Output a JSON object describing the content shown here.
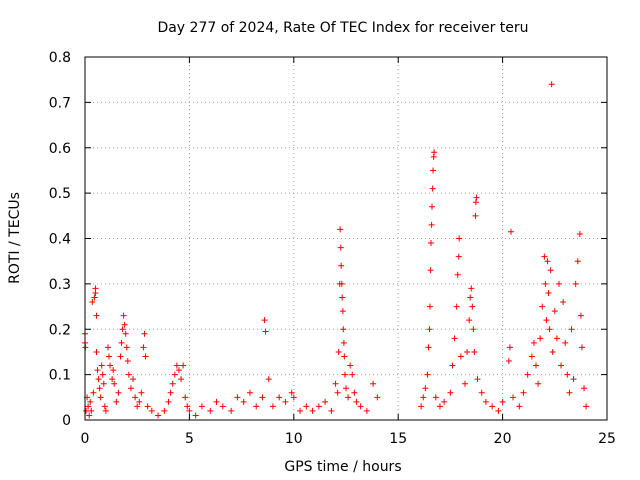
{
  "chart_data": {
    "type": "scatter",
    "title": "Day 277 of 2024, Rate Of TEC Index for receiver teru",
    "xlabel": "GPS time / hours",
    "ylabel": "ROTI / TECUs",
    "xlim": [
      0,
      25
    ],
    "ylim": [
      0,
      0.8
    ],
    "xticks": [
      0,
      5,
      10,
      15,
      20,
      25
    ],
    "yticks": [
      0,
      0.1,
      0.2,
      0.3,
      0.4,
      0.5,
      0.6,
      0.7,
      0.8
    ],
    "grid": true,
    "marker": "+",
    "color": "#ff0000",
    "series": [
      {
        "points": [
          [
            0.0,
            0.19
          ],
          [
            0.0,
            0.17
          ],
          [
            0.02,
            0.16
          ],
          [
            0.05,
            0.02
          ],
          [
            0.1,
            0.05
          ],
          [
            0.15,
            0.03
          ],
          [
            0.2,
            0.01
          ],
          [
            0.25,
            0.04
          ],
          [
            0.3,
            0.02
          ],
          [
            0.35,
            0.26
          ],
          [
            0.4,
            0.06
          ],
          [
            0.45,
            0.27
          ],
          [
            0.5,
            0.29
          ],
          [
            0.5,
            0.28
          ],
          [
            0.55,
            0.23
          ],
          [
            0.55,
            0.15
          ],
          [
            0.6,
            0.11
          ],
          [
            0.65,
            0.09
          ],
          [
            0.7,
            0.07
          ],
          [
            0.75,
            0.05
          ],
          [
            0.8,
            0.12
          ],
          [
            0.85,
            0.1
          ],
          [
            0.9,
            0.08
          ],
          [
            0.95,
            0.03
          ],
          [
            1.0,
            0.02
          ],
          [
            1.1,
            0.16
          ],
          [
            1.15,
            0.14
          ],
          [
            1.2,
            0.12
          ],
          [
            1.3,
            0.09
          ],
          [
            1.35,
            0.11
          ],
          [
            1.4,
            0.08
          ],
          [
            1.5,
            0.04
          ],
          [
            1.6,
            0.06
          ],
          [
            1.7,
            0.14
          ],
          [
            1.75,
            0.17
          ],
          [
            1.8,
            0.2
          ],
          [
            1.85,
            0.23
          ],
          [
            1.9,
            0.21
          ],
          [
            1.95,
            0.19
          ],
          [
            2.0,
            0.16
          ],
          [
            2.05,
            0.13
          ],
          [
            2.1,
            0.1
          ],
          [
            2.2,
            0.07
          ],
          [
            2.3,
            0.09
          ],
          [
            2.4,
            0.05
          ],
          [
            2.5,
            0.03
          ],
          [
            2.6,
            0.04
          ],
          [
            2.7,
            0.06
          ],
          [
            2.8,
            0.16
          ],
          [
            2.85,
            0.19
          ],
          [
            2.9,
            0.14
          ],
          [
            3.0,
            0.03
          ],
          [
            3.2,
            0.02
          ],
          [
            3.5,
            0.01
          ],
          [
            3.8,
            0.02
          ],
          [
            4.0,
            0.04
          ],
          [
            4.1,
            0.06
          ],
          [
            4.2,
            0.08
          ],
          [
            4.3,
            0.1
          ],
          [
            4.4,
            0.12
          ],
          [
            4.5,
            0.11
          ],
          [
            4.6,
            0.09
          ],
          [
            4.7,
            0.12
          ],
          [
            4.8,
            0.05
          ],
          [
            4.9,
            0.03
          ],
          [
            5.0,
            0.02
          ],
          [
            5.3,
            0.01
          ],
          [
            5.6,
            0.03
          ],
          [
            6.0,
            0.02
          ],
          [
            6.3,
            0.04
          ],
          [
            6.6,
            0.03
          ],
          [
            7.0,
            0.02
          ],
          [
            7.3,
            0.05
          ],
          [
            7.6,
            0.04
          ],
          [
            7.9,
            0.06
          ],
          [
            8.2,
            0.03
          ],
          [
            8.5,
            0.05
          ],
          [
            8.6,
            0.22
          ],
          [
            8.65,
            0.195
          ],
          [
            8.8,
            0.09
          ],
          [
            9.0,
            0.03
          ],
          [
            9.3,
            0.05
          ],
          [
            9.6,
            0.04
          ],
          [
            9.9,
            0.06
          ],
          [
            10.0,
            0.05
          ],
          [
            10.3,
            0.02
          ],
          [
            10.6,
            0.03
          ],
          [
            10.9,
            0.02
          ],
          [
            11.2,
            0.03
          ],
          [
            11.5,
            0.04
          ],
          [
            11.8,
            0.02
          ],
          [
            12.0,
            0.08
          ],
          [
            12.1,
            0.06
          ],
          [
            12.15,
            0.15
          ],
          [
            12.2,
            0.3
          ],
          [
            12.22,
            0.42
          ],
          [
            12.25,
            0.38
          ],
          [
            12.27,
            0.34
          ],
          [
            12.3,
            0.3
          ],
          [
            12.32,
            0.27
          ],
          [
            12.35,
            0.24
          ],
          [
            12.37,
            0.2
          ],
          [
            12.4,
            0.17
          ],
          [
            12.42,
            0.14
          ],
          [
            12.45,
            0.1
          ],
          [
            12.5,
            0.07
          ],
          [
            12.6,
            0.05
          ],
          [
            12.7,
            0.12
          ],
          [
            12.8,
            0.1
          ],
          [
            12.9,
            0.06
          ],
          [
            13.0,
            0.04
          ],
          [
            13.2,
            0.03
          ],
          [
            13.5,
            0.02
          ],
          [
            13.8,
            0.08
          ],
          [
            14.0,
            0.05
          ],
          [
            16.1,
            0.03
          ],
          [
            16.2,
            0.05
          ],
          [
            16.3,
            0.07
          ],
          [
            16.4,
            0.1
          ],
          [
            16.45,
            0.16
          ],
          [
            16.5,
            0.2
          ],
          [
            16.52,
            0.25
          ],
          [
            16.55,
            0.33
          ],
          [
            16.57,
            0.39
          ],
          [
            16.6,
            0.43
          ],
          [
            16.62,
            0.47
          ],
          [
            16.65,
            0.51
          ],
          [
            16.67,
            0.55
          ],
          [
            16.7,
            0.58
          ],
          [
            16.72,
            0.59
          ],
          [
            16.8,
            0.05
          ],
          [
            17.0,
            0.03
          ],
          [
            17.2,
            0.04
          ],
          [
            17.5,
            0.06
          ],
          [
            17.6,
            0.12
          ],
          [
            17.7,
            0.18
          ],
          [
            17.8,
            0.25
          ],
          [
            17.85,
            0.32
          ],
          [
            17.9,
            0.36
          ],
          [
            17.92,
            0.4
          ],
          [
            18.0,
            0.14
          ],
          [
            18.2,
            0.08
          ],
          [
            18.3,
            0.15
          ],
          [
            18.4,
            0.22
          ],
          [
            18.45,
            0.27
          ],
          [
            18.5,
            0.29
          ],
          [
            18.55,
            0.25
          ],
          [
            18.6,
            0.2
          ],
          [
            18.65,
            0.15
          ],
          [
            18.7,
            0.45
          ],
          [
            18.72,
            0.48
          ],
          [
            18.75,
            0.49
          ],
          [
            18.8,
            0.09
          ],
          [
            19.0,
            0.06
          ],
          [
            19.2,
            0.04
          ],
          [
            19.5,
            0.03
          ],
          [
            19.8,
            0.02
          ],
          [
            20.0,
            0.04
          ],
          [
            20.3,
            0.13
          ],
          [
            20.35,
            0.16
          ],
          [
            20.4,
            0.415
          ],
          [
            20.5,
            0.05
          ],
          [
            20.8,
            0.03
          ],
          [
            21.0,
            0.06
          ],
          [
            21.2,
            0.1
          ],
          [
            21.4,
            0.14
          ],
          [
            21.5,
            0.17
          ],
          [
            21.6,
            0.12
          ],
          [
            21.7,
            0.08
          ],
          [
            21.8,
            0.18
          ],
          [
            21.9,
            0.25
          ],
          [
            22.0,
            0.36
          ],
          [
            22.05,
            0.3
          ],
          [
            22.1,
            0.22
          ],
          [
            22.15,
            0.35
          ],
          [
            22.2,
            0.28
          ],
          [
            22.25,
            0.2
          ],
          [
            22.3,
            0.33
          ],
          [
            22.35,
            0.74
          ],
          [
            22.4,
            0.15
          ],
          [
            22.5,
            0.24
          ],
          [
            22.6,
            0.18
          ],
          [
            22.7,
            0.3
          ],
          [
            22.8,
            0.12
          ],
          [
            22.9,
            0.26
          ],
          [
            23.0,
            0.17
          ],
          [
            23.1,
            0.1
          ],
          [
            23.2,
            0.06
          ],
          [
            23.3,
            0.2
          ],
          [
            23.4,
            0.09
          ],
          [
            23.5,
            0.3
          ],
          [
            23.6,
            0.35
          ],
          [
            23.7,
            0.41
          ],
          [
            23.75,
            0.23
          ],
          [
            23.8,
            0.16
          ],
          [
            23.9,
            0.07
          ],
          [
            24.0,
            0.03
          ]
        ]
      }
    ]
  }
}
